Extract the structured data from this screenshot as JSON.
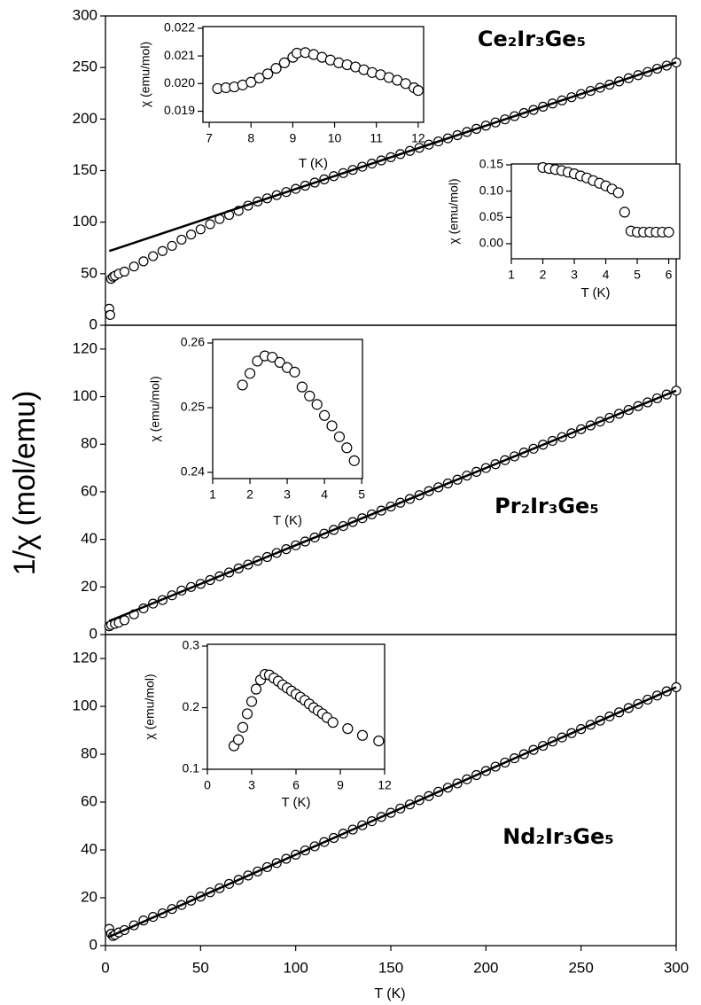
{
  "chart_data": [
    {
      "type": "scatter",
      "title": "Ce₂Ir₃Ge₅",
      "xlim": [
        0,
        300
      ],
      "ylim": [
        0,
        300
      ],
      "yticks": [
        0,
        50,
        100,
        150,
        200,
        250,
        300
      ],
      "color": "#000000",
      "series": [
        {
          "marker": "circle",
          "x": [
            2,
            2.5,
            3,
            4,
            5,
            7,
            10,
            15,
            20,
            25,
            30,
            35,
            40,
            45,
            50,
            55,
            60,
            65,
            70,
            75,
            80,
            85,
            90,
            95,
            100,
            105,
            110,
            115,
            120,
            125,
            130,
            135,
            140,
            145,
            150,
            155,
            160,
            165,
            170,
            175,
            180,
            185,
            190,
            195,
            200,
            205,
            210,
            215,
            220,
            225,
            230,
            235,
            240,
            245,
            250,
            255,
            260,
            265,
            270,
            275,
            280,
            285,
            290,
            295,
            300
          ],
          "values": [
            16,
            10,
            45,
            47,
            48,
            50,
            52,
            57,
            62,
            67,
            72,
            77,
            83,
            88,
            93,
            98,
            103,
            107,
            111,
            116,
            120.0,
            123.1,
            126.2,
            129.2,
            132.3,
            135.4,
            138.4,
            141.5,
            144.6,
            147.6,
            150.7,
            153.8,
            156.8,
            159.9,
            163.0,
            166.0,
            169.1,
            172.1,
            175.2,
            178.3,
            181.3,
            184.4,
            187.5,
            190.5,
            193.6,
            196.7,
            199.7,
            202.8,
            205.9,
            208.9,
            212.0,
            215.1,
            218.1,
            221.2,
            224.3,
            227.3,
            230.4,
            233.4,
            236.5,
            239.6,
            242.6,
            245.7,
            248.8,
            251.8,
            254.9
          ]
        },
        {
          "style": "line",
          "x": [
            2,
            300
          ],
          "values": [
            72,
            255
          ]
        }
      ]
    },
    {
      "type": "scatter",
      "xlabel": "T (K)",
      "ylabel": "χ (emu/mol)",
      "xlim": [
        6.85,
        12.13
      ],
      "ylim": [
        0.0186,
        0.02206
      ],
      "xticks": [
        7,
        8,
        9,
        10,
        11,
        12
      ],
      "yticks": [
        0.019,
        {
          "value": 0.02,
          "label": "0.020"
        },
        0.021,
        0.022
      ],
      "color": "#000000",
      "series": [
        {
          "marker": "circle",
          "x": [
            7.2,
            7.4,
            7.6,
            7.8,
            8.0,
            8.2,
            8.4,
            8.6,
            8.8,
            9.0,
            9.1,
            9.3,
            9.5,
            9.7,
            9.9,
            10.1,
            10.3,
            10.5,
            10.7,
            10.9,
            11.1,
            11.3,
            11.5,
            11.7,
            11.9,
            12.0
          ],
          "values": [
            0.01982,
            0.01985,
            0.01988,
            0.01995,
            0.02005,
            0.0202,
            0.02035,
            0.02055,
            0.02075,
            0.02095,
            0.0211,
            0.02112,
            0.02105,
            0.02095,
            0.02085,
            0.02075,
            0.02068,
            0.0206,
            0.0205,
            0.0204,
            0.02032,
            0.02022,
            0.02012,
            0.02,
            0.01985,
            0.01975
          ]
        }
      ]
    },
    {
      "type": "scatter",
      "xlabel": "T (K)",
      "ylabel": "χ (emu/mol)",
      "xlim": [
        1,
        6.35
      ],
      "ylim": [
        -0.0287,
        0.1517
      ],
      "xticks": [
        1,
        2,
        3,
        4,
        5,
        6
      ],
      "yticks": [
        {
          "value": 0,
          "label": "0.00"
        },
        0.05,
        {
          "value": 0.1,
          "label": "0.10"
        },
        0.15
      ],
      "color": "#000000",
      "series": [
        {
          "marker": "circle",
          "x": [
            2.0,
            2.2,
            2.4,
            2.6,
            2.8,
            3.0,
            3.2,
            3.4,
            3.6,
            3.8,
            4.0,
            4.2,
            4.4,
            4.6,
            4.8,
            5.0,
            5.2,
            5.4,
            5.6,
            5.8,
            6.0
          ],
          "values": [
            0.145,
            0.143,
            0.141,
            0.139,
            0.136,
            0.133,
            0.129,
            0.125,
            0.12,
            0.115,
            0.11,
            0.104,
            0.097,
            0.06,
            0.024,
            0.022,
            0.022,
            0.022,
            0.022,
            0.022,
            0.022
          ]
        }
      ]
    },
    {
      "type": "scatter",
      "title": "Pr₂Ir₃Ge₅",
      "ylabel": "1/χ (mol/emu)",
      "xlim": [
        0,
        300
      ],
      "ylim": [
        0,
        130
      ],
      "yticks": [
        0,
        20,
        40,
        60,
        80,
        100,
        120
      ],
      "color": "#000000",
      "series": [
        {
          "marker": "circle",
          "x": [
            2,
            3,
            5,
            7,
            10,
            15,
            20,
            25,
            30,
            35,
            40,
            45,
            50,
            55,
            60,
            65,
            70,
            75,
            80,
            85,
            90,
            95,
            100,
            105,
            110,
            115,
            120,
            125,
            130,
            135,
            140,
            145,
            150,
            155,
            160,
            165,
            170,
            175,
            180,
            185,
            190,
            195,
            200,
            205,
            210,
            215,
            220,
            225,
            230,
            235,
            240,
            245,
            250,
            255,
            260,
            265,
            270,
            275,
            280,
            285,
            290,
            295,
            300
          ],
          "values": [
            3.5,
            4,
            4.5,
            5,
            6,
            8.5,
            11,
            13,
            14.5,
            16.5,
            18.5,
            20,
            21.3,
            22.9,
            24.5,
            26.1,
            27.8,
            29.4,
            31.0,
            32.6,
            34.3,
            35.9,
            37.5,
            39.1,
            40.8,
            42.4,
            44.0,
            45.6,
            47.3,
            48.9,
            50.5,
            52.1,
            53.8,
            55.4,
            57.0,
            58.6,
            60.3,
            61.9,
            63.5,
            65.1,
            66.8,
            68.4,
            70.0,
            71.6,
            73.3,
            74.9,
            76.5,
            78.1,
            79.8,
            81.4,
            83.0,
            84.6,
            86.3,
            87.9,
            89.5,
            91.1,
            92.8,
            94.4,
            96.0,
            97.6,
            99.3,
            100.9,
            102.5
          ]
        },
        {
          "style": "line",
          "x": [
            2,
            300
          ],
          "values": [
            5.7,
            102.5
          ]
        }
      ]
    },
    {
      "type": "scatter",
      "xlabel": "T (K)",
      "ylabel": "χ (emu/mol)",
      "xlim": [
        1,
        5.02
      ],
      "ylim": [
        0.23904,
        0.26055
      ],
      "xticks": [
        1,
        2,
        3,
        4,
        5
      ],
      "yticks": [
        0.24,
        0.25,
        0.26
      ],
      "color": "#000000",
      "series": [
        {
          "marker": "circle",
          "x": [
            1.8,
            2.0,
            2.2,
            2.4,
            2.6,
            2.8,
            3.0,
            3.2,
            3.4,
            3.6,
            3.8,
            4.0,
            4.2,
            4.4,
            4.6,
            4.8
          ],
          "values": [
            0.2535,
            0.2553,
            0.2572,
            0.258,
            0.2578,
            0.257,
            0.2562,
            0.2555,
            0.2532,
            0.2518,
            0.2505,
            0.2488,
            0.2472,
            0.2455,
            0.2438,
            0.2418
          ]
        }
      ]
    },
    {
      "type": "scatter",
      "title": "Nd₂Ir₃Ge₅",
      "xlabel": "T (K)",
      "xlim": [
        0,
        300
      ],
      "ylim": [
        0,
        130
      ],
      "xticks": [
        0,
        50,
        100,
        150,
        200,
        250,
        300
      ],
      "yticks": [
        0,
        20,
        40,
        60,
        80,
        100,
        120
      ],
      "color": "#000000",
      "series": [
        {
          "marker": "circle",
          "x": [
            2,
            3,
            4,
            5,
            7,
            10,
            15,
            20,
            25,
            30,
            35,
            40,
            45,
            50,
            55,
            60,
            65,
            70,
            75,
            80,
            85,
            90,
            95,
            100,
            105,
            110,
            115,
            120,
            125,
            130,
            135,
            140,
            145,
            150,
            155,
            160,
            165,
            170,
            175,
            180,
            185,
            190,
            195,
            200,
            205,
            210,
            215,
            220,
            225,
            230,
            235,
            240,
            245,
            250,
            255,
            260,
            265,
            270,
            275,
            280,
            285,
            290,
            295,
            300
          ],
          "values": [
            7,
            5,
            4,
            4.5,
            5.5,
            6.5,
            8.5,
            10.5,
            12,
            13.5,
            15.3,
            17,
            18.8,
            20.5,
            22.3,
            24,
            25.8,
            27.5,
            29.3,
            31,
            32.8,
            34.5,
            36.3,
            38,
            39.8,
            41.5,
            43.3,
            45,
            46.8,
            48.5,
            50.3,
            52,
            53.8,
            55.5,
            57.3,
            59,
            60.8,
            62.5,
            64.3,
            66,
            67.8,
            69.5,
            71.3,
            73,
            74.8,
            76.5,
            78.3,
            80,
            81.8,
            83.5,
            85.3,
            87,
            88.8,
            90.5,
            92.3,
            94,
            95.8,
            97.5,
            99.3,
            101,
            102.8,
            104.5,
            106.3,
            108
          ]
        },
        {
          "style": "line",
          "x": [
            2,
            300
          ],
          "values": [
            3.7,
            108
          ]
        }
      ]
    },
    {
      "type": "scatter",
      "xlabel": "T (K)",
      "ylabel": "χ (emu/mol)",
      "xlim": [
        0,
        12
      ],
      "ylim": [
        0.1,
        0.3029
      ],
      "xticks": [
        0,
        3,
        6,
        9,
        12
      ],
      "yticks": [
        0.1,
        0.2,
        0.3
      ],
      "color": "#000000",
      "series": [
        {
          "marker": "circle",
          "x": [
            1.8,
            2.1,
            2.4,
            2.7,
            3.0,
            3.3,
            3.6,
            3.9,
            4.2,
            4.5,
            4.8,
            5.1,
            5.4,
            5.7,
            6.0,
            6.3,
            6.6,
            6.9,
            7.2,
            7.5,
            7.8,
            8.1,
            8.5,
            9.5,
            10.5,
            11.6
          ],
          "values": [
            0.138,
            0.148,
            0.168,
            0.19,
            0.21,
            0.23,
            0.245,
            0.254,
            0.253,
            0.248,
            0.243,
            0.237,
            0.232,
            0.227,
            0.222,
            0.217,
            0.212,
            0.206,
            0.2,
            0.195,
            0.19,
            0.184,
            0.176,
            0.166,
            0.155,
            0.146
          ]
        }
      ]
    }
  ]
}
